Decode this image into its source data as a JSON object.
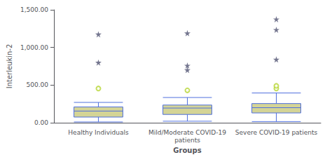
{
  "chart_data": {
    "type": "boxplot",
    "categories": [
      "Healthy Individuals",
      "Mild/Moderate COVID-19\npatients",
      "Severe COVID-19 patients"
    ],
    "xlabel": "Groups",
    "ylabel": "Interleukin-2",
    "ylim": [
      0,
      1500
    ],
    "yticks": [
      {
        "value": 0,
        "label": "0.00"
      },
      {
        "value": 500,
        "label": "500.00"
      },
      {
        "value": 1000,
        "label": "1,000.00"
      },
      {
        "value": 1500,
        "label": "1,500.00"
      }
    ],
    "grid": false,
    "color": "#d4d496",
    "boxes": [
      {
        "q1": 75,
        "median": 155,
        "q3": 210,
        "whisker_low": 10,
        "whisker_high": 270,
        "outliers": [
          {
            "marker": "circle",
            "values": [
              455
            ]
          },
          {
            "marker": "star",
            "values": [
              800,
              1175
            ]
          }
        ]
      },
      {
        "q1": 110,
        "median": 195,
        "q3": 235,
        "whisker_low": 20,
        "whisker_high": 335,
        "outliers": [
          {
            "marker": "circle",
            "values": [
              430
            ]
          },
          {
            "marker": "star",
            "values": [
              700,
              760,
              1190
            ]
          }
        ]
      },
      {
        "q1": 130,
        "median": 200,
        "q3": 255,
        "whisker_low": 15,
        "whisker_high": 395,
        "outliers": [
          {
            "marker": "circle",
            "values": [
              455,
              490
            ]
          },
          {
            "marker": "star",
            "values": [
              840,
              1235,
              1375
            ]
          }
        ]
      }
    ]
  }
}
